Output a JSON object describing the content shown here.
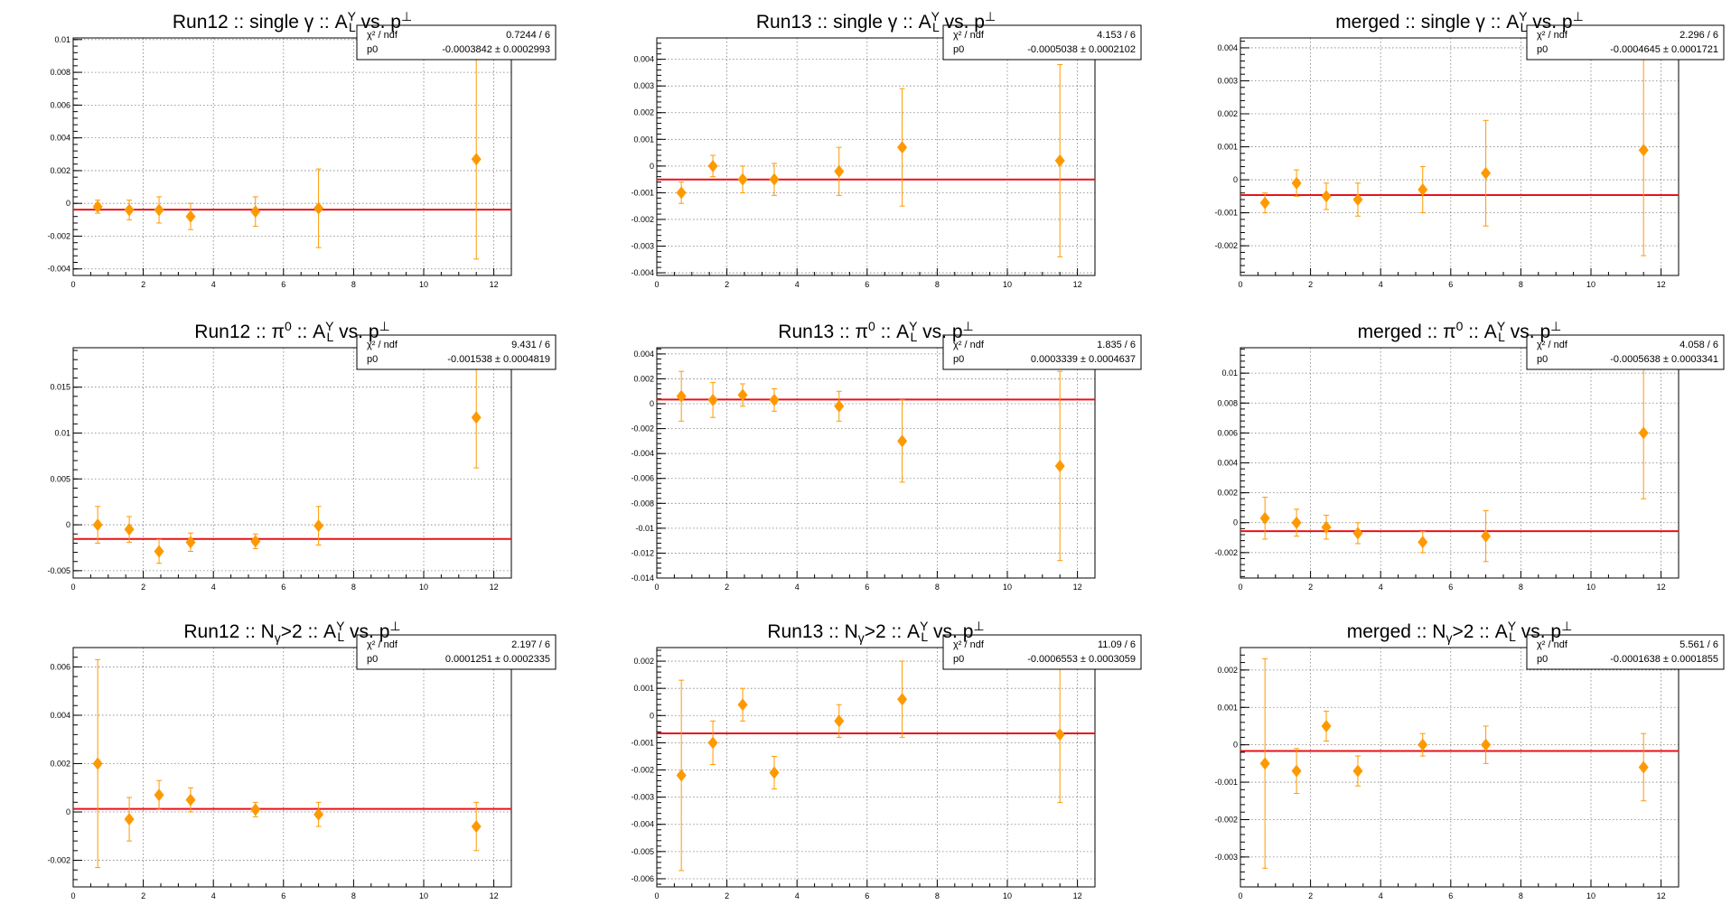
{
  "colors": {
    "points": "#ff9900",
    "fit_line": "#e8121a",
    "grid": "#7f7f7f",
    "frame": "#000000"
  },
  "chart_data": [
    {
      "type": "scatter",
      "title": "Run12 :: single γ :: A_L^Y vs. p_⊥",
      "title_parts": [
        "Run12 :: single γ :: A",
        "Y",
        "L",
        " vs. p",
        "⊥"
      ],
      "xlim": [
        0,
        12.5
      ],
      "ylim": [
        -0.0044,
        0.0101
      ],
      "xticks": [
        0,
        2,
        4,
        6,
        8,
        10,
        12
      ],
      "yticks": [
        -0.004,
        -0.002,
        0,
        0.002,
        0.004,
        0.006,
        0.008,
        0.01
      ],
      "ytick_labels": [
        "-0.004",
        "-0.002",
        "0",
        "0.002",
        "0.004",
        "0.006",
        "0.008",
        "0.01"
      ],
      "x": [
        0.7,
        1.6,
        2.45,
        3.35,
        5.2,
        7.0,
        11.5
      ],
      "y": [
        -0.0002,
        -0.0004,
        -0.0004,
        -0.0008,
        -0.0005,
        -0.0003,
        0.0027
      ],
      "yerr": [
        0.0004,
        0.0006,
        0.0008,
        0.0008,
        0.0009,
        0.0024,
        0.0061
      ],
      "fit": 0.0003842,
      "fit_sign": -1,
      "stats": [
        [
          "χ² / ndf",
          "0.7244 / 6"
        ],
        [
          "p0",
          "-0.0003842 ± 0.0002993"
        ]
      ]
    },
    {
      "type": "scatter",
      "title": "Run13 :: single γ :: A_L^Y vs. p_⊥",
      "title_parts": [
        "Run13 :: single γ :: A",
        "Y",
        "L",
        " vs. p",
        "⊥"
      ],
      "xlim": [
        0,
        12.5
      ],
      "ylim": [
        -0.0041,
        0.0048
      ],
      "xticks": [
        0,
        2,
        4,
        6,
        8,
        10,
        12
      ],
      "yticks": [
        -0.004,
        -0.003,
        -0.002,
        -0.001,
        0,
        0.001,
        0.002,
        0.003,
        0.004
      ],
      "ytick_labels": [
        "-0.004",
        "-0.003",
        "-0.002",
        "-0.001",
        "0",
        "0.001",
        "0.002",
        "0.003",
        "0.004"
      ],
      "x": [
        0.7,
        1.6,
        2.45,
        3.35,
        5.2,
        7.0,
        11.5
      ],
      "y": [
        -0.001,
        0.0,
        -0.0005,
        -0.0005,
        -0.0002,
        0.0007,
        0.0002
      ],
      "yerr": [
        0.0004,
        0.0004,
        0.0005,
        0.0006,
        0.0009,
        0.0022,
        0.0036
      ],
      "fit": 0.0005038,
      "fit_sign": -1,
      "stats": [
        [
          "χ² / ndf",
          "4.153 / 6"
        ],
        [
          "p0",
          "-0.0005038 ± 0.0002102"
        ]
      ]
    },
    {
      "type": "scatter",
      "title": "merged :: single γ :: A_L^Y vs. p_⊥",
      "title_parts": [
        "merged :: single γ :: A",
        "Y",
        "L",
        " vs. p",
        "⊥"
      ],
      "xlim": [
        0,
        12.5
      ],
      "ylim": [
        -0.0029,
        0.0043
      ],
      "xticks": [
        0,
        2,
        4,
        6,
        8,
        10,
        12
      ],
      "yticks": [
        -0.002,
        -0.001,
        0,
        0.001,
        0.002,
        0.003,
        0.004
      ],
      "ytick_labels": [
        "-0.002",
        "-0.001",
        "0",
        "0.001",
        "0.002",
        "0.003",
        "0.004"
      ],
      "x": [
        0.7,
        1.6,
        2.45,
        3.35,
        5.2,
        7.0,
        11.5
      ],
      "y": [
        -0.0007,
        -0.0001,
        -0.0005,
        -0.0006,
        -0.0003,
        0.0002,
        0.0009
      ],
      "yerr": [
        0.0003,
        0.0004,
        0.0004,
        0.0005,
        0.0007,
        0.0016,
        0.0032
      ],
      "fit": 0.0004645,
      "fit_sign": -1,
      "stats": [
        [
          "χ² / ndf",
          "2.296 / 6"
        ],
        [
          "p0",
          "-0.0004645 ± 0.0001721"
        ]
      ]
    },
    {
      "type": "scatter",
      "title": "Run12 :: π⁰ :: A_L^Y vs. p_⊥",
      "title_parts": [
        "Run12 :: π",
        "0",
        "",
        " :: A",
        "Y",
        "L",
        " vs. p",
        "⊥"
      ],
      "xlim": [
        0,
        12.5
      ],
      "ylim": [
        -0.0058,
        0.0193
      ],
      "xticks": [
        0,
        2,
        4,
        6,
        8,
        10,
        12
      ],
      "yticks": [
        -0.005,
        0,
        0.005,
        0.01,
        0.015
      ],
      "ytick_labels": [
        "-0.005",
        "0",
        "0.005",
        "0.01",
        "0.015"
      ],
      "x": [
        0.7,
        1.6,
        2.45,
        3.35,
        5.2,
        7.0,
        11.5
      ],
      "y": [
        0.0,
        -0.0005,
        -0.0029,
        -0.0019,
        -0.0018,
        -0.0001,
        0.0117
      ],
      "yerr": [
        0.002,
        0.0014,
        0.0013,
        0.001,
        0.0008,
        0.0021,
        0.0055
      ],
      "fit": 0.001538,
      "fit_sign": -1,
      "stats": [
        [
          "χ² / ndf",
          "9.431 / 6"
        ],
        [
          "p0",
          "-0.001538 ± 0.0004819"
        ]
      ]
    },
    {
      "type": "scatter",
      "title": "Run13 :: π⁰ :: A_L^Y vs. p_⊥",
      "title_parts": [
        "Run13 :: π",
        "0",
        "",
        " :: A",
        "Y",
        "L",
        " vs. p",
        "⊥"
      ],
      "xlim": [
        0,
        12.5
      ],
      "ylim": [
        -0.014,
        0.0045
      ],
      "xticks": [
        0,
        2,
        4,
        6,
        8,
        10,
        12
      ],
      "yticks": [
        -0.014,
        -0.012,
        -0.01,
        -0.008,
        -0.006,
        -0.004,
        -0.002,
        0,
        0.002,
        0.004
      ],
      "ytick_labels": [
        "-0.014",
        "-0.012",
        "-0.01",
        "-0.008",
        "-0.006",
        "-0.004",
        "-0.002",
        "0",
        "0.002",
        "0.004"
      ],
      "x": [
        0.7,
        1.6,
        2.45,
        3.35,
        5.2,
        7.0,
        11.5
      ],
      "y": [
        0.0006,
        0.0003,
        0.0007,
        0.0003,
        -0.0002,
        -0.003,
        -0.005
      ],
      "yerr": [
        0.002,
        0.0014,
        0.0009,
        0.0009,
        0.0012,
        0.0033,
        0.0076
      ],
      "fit": 0.0003339,
      "fit_sign": 1,
      "stats": [
        [
          "χ² / ndf",
          "1.835 / 6"
        ],
        [
          "p0",
          "0.0003339 ± 0.0004637"
        ]
      ]
    },
    {
      "type": "scatter",
      "title": "merged :: π⁰ :: A_L^Y vs. p_⊥",
      "title_parts": [
        "merged :: π",
        "0",
        "",
        " :: A",
        "Y",
        "L",
        " vs. p",
        "⊥"
      ],
      "xlim": [
        0,
        12.5
      ],
      "ylim": [
        -0.0037,
        0.0117
      ],
      "xticks": [
        0,
        2,
        4,
        6,
        8,
        10,
        12
      ],
      "yticks": [
        -0.002,
        0,
        0.002,
        0.004,
        0.006,
        0.008,
        0.01
      ],
      "ytick_labels": [
        "-0.002",
        "0",
        "0.002",
        "0.004",
        "0.006",
        "0.008",
        "0.01"
      ],
      "x": [
        0.7,
        1.6,
        2.45,
        3.35,
        5.2,
        7.0,
        11.5
      ],
      "y": [
        0.0003,
        0.0,
        -0.0003,
        -0.0007,
        -0.0013,
        -0.0009,
        0.006
      ],
      "yerr": [
        0.0014,
        0.0009,
        0.0008,
        0.0007,
        0.0007,
        0.0017,
        0.0044
      ],
      "fit": 0.0005638,
      "fit_sign": -1,
      "stats": [
        [
          "χ² / ndf",
          "4.058 / 6"
        ],
        [
          "p0",
          "-0.0005638 ± 0.0003341"
        ]
      ]
    },
    {
      "type": "scatter",
      "title": "Run12 :: N_γ>2 :: A_L^Y vs. p_⊥",
      "title_parts": [
        "Run12 :: N",
        "",
        "γ",
        ">2 :: A",
        "Y",
        "L",
        " vs. p",
        "⊥"
      ],
      "xlim": [
        0,
        12.5
      ],
      "ylim": [
        -0.0031,
        0.0068
      ],
      "xticks": [
        0,
        2,
        4,
        6,
        8,
        10,
        12
      ],
      "yticks": [
        -0.002,
        0,
        0.002,
        0.004,
        0.006
      ],
      "ytick_labels": [
        "-0.002",
        "0",
        "0.002",
        "0.004",
        "0.006"
      ],
      "x": [
        0.7,
        1.6,
        2.45,
        3.35,
        5.2,
        7.0,
        11.5
      ],
      "y": [
        0.002,
        -0.0003,
        0.0007,
        0.0005,
        0.0001,
        -0.0001,
        -0.0006
      ],
      "yerr": [
        0.0043,
        0.0009,
        0.0006,
        0.0005,
        0.0003,
        0.0005,
        0.001
      ],
      "fit": 0.0001251,
      "fit_sign": 1,
      "stats": [
        [
          "χ² / ndf",
          "2.197 / 6"
        ],
        [
          "p0",
          "0.0001251 ± 0.0002335"
        ]
      ]
    },
    {
      "type": "scatter",
      "title": "Run13 :: N_γ>2 :: A_L^Y vs. p_⊥",
      "title_parts": [
        "Run13 :: N",
        "",
        "γ",
        ">2 :: A",
        "Y",
        "L",
        " vs. p",
        "⊥"
      ],
      "xlim": [
        0,
        12.5
      ],
      "ylim": [
        -0.0063,
        0.0025
      ],
      "xticks": [
        0,
        2,
        4,
        6,
        8,
        10,
        12
      ],
      "yticks": [
        -0.006,
        -0.005,
        -0.004,
        -0.003,
        -0.002,
        -0.001,
        0,
        0.001,
        0.002
      ],
      "ytick_labels": [
        "-0.006",
        "-0.005",
        "-0.004",
        "-0.003",
        "-0.002",
        "-0.001",
        "0",
        "0.001",
        "0.002"
      ],
      "x": [
        0.7,
        1.6,
        2.45,
        3.35,
        5.2,
        7.0,
        11.5
      ],
      "y": [
        -0.0022,
        -0.001,
        0.0004,
        -0.0021,
        -0.0002,
        0.0006,
        -0.0007
      ],
      "yerr": [
        0.0035,
        0.0008,
        0.0006,
        0.0006,
        0.0006,
        0.0014,
        0.0025
      ],
      "fit": 0.0006553,
      "fit_sign": -1,
      "stats": [
        [
          "χ² / ndf",
          "11.09 / 6"
        ],
        [
          "p0",
          "-0.0006553 ± 0.0003059"
        ]
      ]
    },
    {
      "type": "scatter",
      "title": "merged :: N_γ>2 :: A_L^Y vs. p_⊥",
      "title_parts": [
        "merged :: N",
        "",
        "γ",
        ">2 :: A",
        "Y",
        "L",
        " vs. p",
        "⊥"
      ],
      "xlim": [
        0,
        12.5
      ],
      "ylim": [
        -0.0038,
        0.0026
      ],
      "xticks": [
        0,
        2,
        4,
        6,
        8,
        10,
        12
      ],
      "yticks": [
        -0.003,
        -0.002,
        -0.001,
        0,
        0.001,
        0.002
      ],
      "ytick_labels": [
        "-0.003",
        "-0.002",
        "-0.001",
        "0",
        "0.001",
        "0.002"
      ],
      "x": [
        0.7,
        1.6,
        2.45,
        3.35,
        5.2,
        7.0,
        11.5
      ],
      "y": [
        -0.0005,
        -0.0007,
        0.0005,
        -0.0007,
        0.0,
        0.0,
        -0.0006
      ],
      "yerr": [
        0.0028,
        0.0006,
        0.0004,
        0.0004,
        0.0003,
        0.0005,
        0.0009
      ],
      "fit": 0.0001638,
      "fit_sign": -1,
      "stats": [
        [
          "χ² / ndf",
          "5.561 / 6"
        ],
        [
          "p0",
          "-0.0001638 ± 0.0001855"
        ]
      ]
    }
  ]
}
